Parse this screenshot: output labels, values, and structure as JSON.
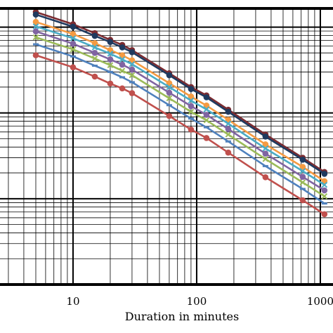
{
  "chart_data": {
    "type": "line",
    "x_scale": "log",
    "y_scale": "log",
    "xlim": [
      2.5,
      1300
    ],
    "ylim": [
      0.01,
      16.5
    ],
    "xlabel": "Duration in minutes",
    "ylabel": "",
    "grid": true,
    "x_tick_labels": [
      {
        "value": 10,
        "label": "10"
      },
      {
        "value": 100,
        "label": "100"
      },
      {
        "value": 1000,
        "label": "1000"
      }
    ],
    "x": [
      5,
      10,
      15,
      20,
      25,
      30,
      60,
      90,
      120,
      180,
      360,
      720,
      1080
    ],
    "series": [
      {
        "color": "#7b2c31",
        "marker": "circle",
        "values": [
          15.0,
          10.8,
          8.5,
          7.1,
          6.2,
          5.4,
          2.9,
          2.0,
          1.6,
          1.09,
          0.56,
          0.3,
          0.205
        ]
      },
      {
        "color": "#1f3a5f",
        "marker": "circle",
        "values": [
          14.0,
          10.1,
          7.9,
          6.7,
          5.8,
          5.1,
          2.75,
          1.9,
          1.52,
          1.03,
          0.53,
          0.285,
          0.195
        ]
      },
      {
        "color": "#f59b42",
        "marker": "circle",
        "values": [
          11.5,
          8.3,
          6.5,
          5.4,
          4.7,
          4.1,
          2.22,
          1.55,
          1.22,
          0.83,
          0.43,
          0.235,
          0.16
        ]
      },
      {
        "color": "#4bacc6",
        "marker": "x",
        "values": [
          10.2,
          7.4,
          5.8,
          4.9,
          4.2,
          3.7,
          2.0,
          1.39,
          1.1,
          0.75,
          0.385,
          0.21,
          0.145
        ]
      },
      {
        "color": "#8064a2",
        "marker": "circle",
        "values": [
          8.9,
          6.4,
          5.0,
          4.2,
          3.65,
          3.2,
          1.72,
          1.2,
          0.95,
          0.65,
          0.335,
          0.18,
          0.125
        ]
      },
      {
        "color": "#9bbb59",
        "marker": "x",
        "values": [
          7.6,
          5.5,
          4.3,
          3.6,
          3.1,
          2.75,
          1.48,
          1.03,
          0.82,
          0.56,
          0.29,
          0.155,
          0.107
        ]
      },
      {
        "color": "#4f81bd",
        "marker": "dash",
        "values": [
          6.3,
          4.55,
          3.55,
          3.0,
          2.6,
          2.28,
          1.23,
          0.86,
          0.68,
          0.465,
          0.24,
          0.13,
          0.088
        ]
      },
      {
        "color": "#c0504d",
        "marker": "circle",
        "values": [
          4.7,
          3.4,
          2.65,
          2.2,
          1.93,
          1.7,
          0.92,
          0.64,
          0.51,
          0.345,
          0.178,
          0.096,
          0.066
        ]
      }
    ]
  }
}
